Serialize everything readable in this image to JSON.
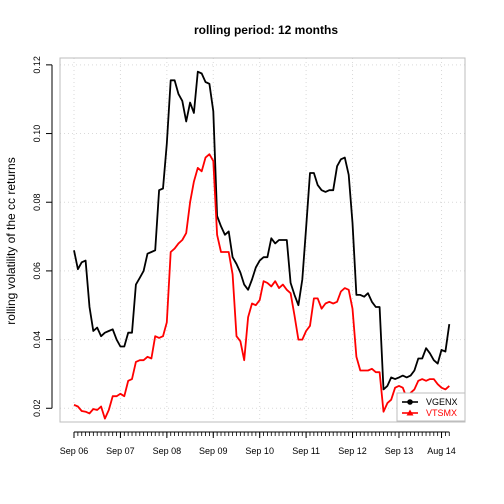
{
  "chart_data": {
    "type": "line",
    "title": "rolling period: 12 months",
    "xlabel": "",
    "ylabel": "rolling volatility of the cc returns",
    "xlim": [
      0,
      99
    ],
    "ylim": [
      0.016,
      0.122
    ],
    "grid": true,
    "legend_position": "bottom-right",
    "y_ticks": [
      0.02,
      0.04,
      0.06,
      0.08,
      0.1,
      0.12
    ],
    "y_tick_labels": [
      "0.02",
      "0.04",
      "0.06",
      "0.08",
      "0.10",
      "0.12"
    ],
    "x_ticks": [
      {
        "index": 0,
        "label": "Sep 06"
      },
      {
        "index": 12,
        "label": "Sep 07"
      },
      {
        "index": 24,
        "label": "Sep 08"
      },
      {
        "index": 36,
        "label": "Sep 09"
      },
      {
        "index": 48,
        "label": "Sep 10"
      },
      {
        "index": 60,
        "label": "Sep 11"
      },
      {
        "index": 72,
        "label": "Sep 12"
      },
      {
        "index": 84,
        "label": "Sep 13"
      },
      {
        "index": 95,
        "label": "Aug 14"
      }
    ],
    "series": [
      {
        "name": "VGENX",
        "color": "#000000",
        "values": [
          0.066,
          0.0605,
          0.0625,
          0.063,
          0.0495,
          0.0425,
          0.0435,
          0.041,
          0.042,
          0.0425,
          0.043,
          0.04,
          0.038,
          0.038,
          0.042,
          0.042,
          0.056,
          0.058,
          0.06,
          0.065,
          0.0655,
          0.066,
          0.0835,
          0.084,
          0.097,
          0.1155,
          0.1155,
          0.1115,
          0.1095,
          0.1035,
          0.109,
          0.106,
          0.118,
          0.1175,
          0.115,
          0.1145,
          0.1065,
          0.076,
          0.073,
          0.0705,
          0.0715,
          0.064,
          0.062,
          0.0595,
          0.056,
          0.0545,
          0.0575,
          0.061,
          0.063,
          0.064,
          0.064,
          0.0695,
          0.068,
          0.069,
          0.069,
          0.069,
          0.0565,
          0.053,
          0.05,
          0.0575,
          0.0725,
          0.0885,
          0.0885,
          0.085,
          0.0835,
          0.083,
          0.0835,
          0.0835,
          0.0905,
          0.0925,
          0.093,
          0.088,
          0.074,
          0.053,
          0.053,
          0.0525,
          0.0535,
          0.051,
          0.0495,
          0.0495,
          0.0255,
          0.0265,
          0.029,
          0.0285,
          0.029,
          0.0295,
          0.029,
          0.0295,
          0.031,
          0.0345,
          0.0345,
          0.0375,
          0.036,
          0.034,
          0.033,
          0.037,
          0.0365,
          0.0445
        ]
      },
      {
        "name": "VTSMX",
        "color": "#ff0000",
        "values": [
          0.021,
          0.0205,
          0.0192,
          0.019,
          0.0185,
          0.0198,
          0.0195,
          0.0205,
          0.017,
          0.0195,
          0.0235,
          0.0235,
          0.0242,
          0.0235,
          0.028,
          0.0285,
          0.0335,
          0.034,
          0.034,
          0.035,
          0.0345,
          0.041,
          0.0405,
          0.041,
          0.045,
          0.0655,
          0.0665,
          0.068,
          0.069,
          0.071,
          0.08,
          0.086,
          0.09,
          0.089,
          0.093,
          0.094,
          0.092,
          0.0705,
          0.0655,
          0.0655,
          0.0655,
          0.059,
          0.041,
          0.0395,
          0.034,
          0.0465,
          0.0505,
          0.05,
          0.0515,
          0.057,
          0.0565,
          0.0555,
          0.057,
          0.055,
          0.056,
          0.0545,
          0.0535,
          0.047,
          0.04,
          0.04,
          0.0425,
          0.044,
          0.052,
          0.052,
          0.049,
          0.0505,
          0.051,
          0.0505,
          0.051,
          0.054,
          0.055,
          0.0545,
          0.049,
          0.035,
          0.031,
          0.031,
          0.031,
          0.0315,
          0.0305,
          0.0305,
          0.019,
          0.0215,
          0.0225,
          0.026,
          0.0265,
          0.026,
          0.023,
          0.0245,
          0.0255,
          0.028,
          0.0285,
          0.028,
          0.0285,
          0.0285,
          0.027,
          0.026,
          0.0255,
          0.0265
        ]
      }
    ]
  }
}
